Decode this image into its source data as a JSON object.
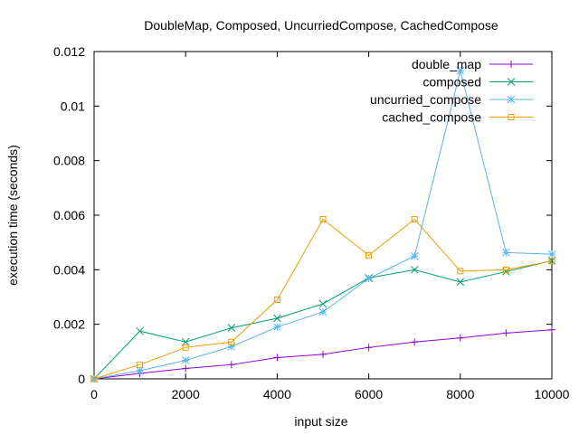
{
  "chart_data": {
    "type": "line",
    "title": "DoubleMap, Composed, UncurriedCompose, CachedCompose",
    "xlabel": "input size",
    "ylabel": "execution time (seconds)",
    "xlim": [
      0,
      10000
    ],
    "ylim": [
      0,
      0.012
    ],
    "grid": false,
    "legend_position": "top-right",
    "x_ticks": [
      "0",
      "2000",
      "4000",
      "6000",
      "8000",
      "10000"
    ],
    "y_ticks": [
      "0",
      "0.002",
      "0.004",
      "0.006",
      "0.008",
      "0.01",
      "0.012"
    ],
    "x": [
      0,
      1000,
      2000,
      3000,
      4000,
      5000,
      6000,
      7000,
      8000,
      9000,
      10000
    ],
    "series": [
      {
        "name": "double_map",
        "color": "#9400d3",
        "marker": "plus",
        "values": [
          0,
          0.0002,
          0.00038,
          0.00052,
          0.00078,
          0.0009,
          0.00115,
          0.00135,
          0.0015,
          0.00168,
          0.0018
        ]
      },
      {
        "name": "composed",
        "color": "#009e73",
        "marker": "cross",
        "values": [
          0,
          0.00175,
          0.00135,
          0.00187,
          0.00222,
          0.00275,
          0.0037,
          0.004,
          0.00355,
          0.00393,
          0.00433
        ]
      },
      {
        "name": "uncurried_compose",
        "color": "#56b4e9",
        "marker": "star",
        "values": [
          0,
          0.0003,
          0.00068,
          0.00118,
          0.0019,
          0.00245,
          0.00368,
          0.0045,
          0.0113,
          0.00463,
          0.00457
        ]
      },
      {
        "name": "cached_compose",
        "color": "#e69f00",
        "marker": "square",
        "values": [
          0,
          0.00052,
          0.00115,
          0.00135,
          0.0029,
          0.00585,
          0.00453,
          0.00585,
          0.00395,
          0.004,
          0.00432
        ]
      }
    ]
  }
}
